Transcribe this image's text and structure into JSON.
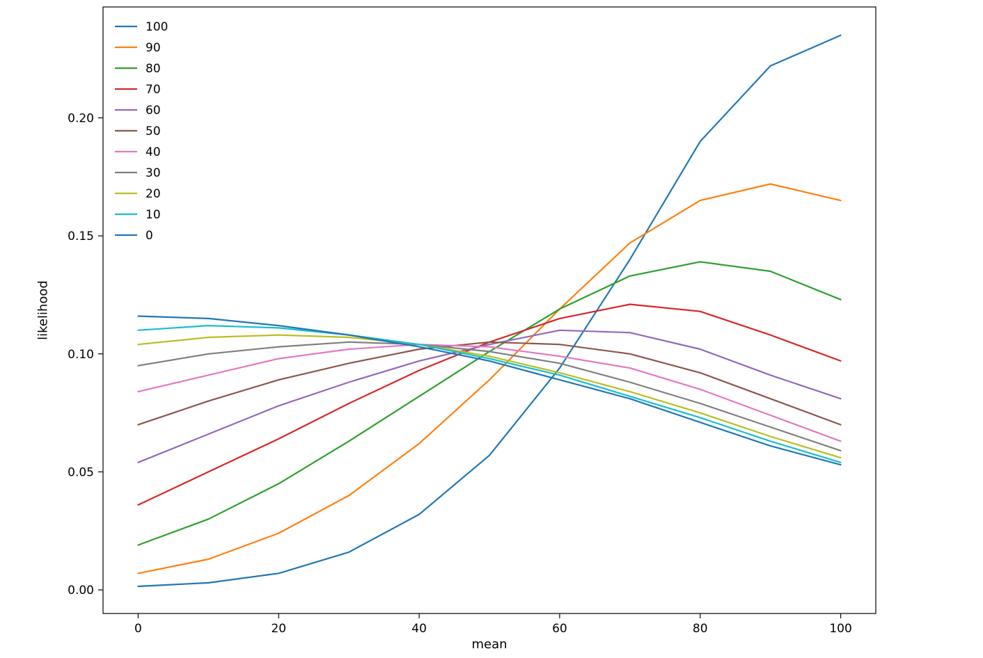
{
  "chart_data": {
    "type": "line",
    "title": "",
    "xlabel": "mean",
    "ylabel": "likelihood",
    "x": [
      0,
      10,
      20,
      30,
      40,
      50,
      60,
      70,
      80,
      90,
      100
    ],
    "series": [
      {
        "name": "100",
        "color": "#1f77b4",
        "values": [
          0.0015,
          0.003,
          0.007,
          0.016,
          0.032,
          0.057,
          0.094,
          0.14,
          0.19,
          0.222,
          0.235
        ]
      },
      {
        "name": "90",
        "color": "#ff7f0e",
        "values": [
          0.007,
          0.013,
          0.024,
          0.04,
          0.062,
          0.089,
          0.119,
          0.147,
          0.165,
          0.172,
          0.165
        ]
      },
      {
        "name": "80",
        "color": "#2ca02c",
        "values": [
          0.019,
          0.03,
          0.045,
          0.063,
          0.082,
          0.101,
          0.119,
          0.133,
          0.139,
          0.135,
          0.123
        ]
      },
      {
        "name": "70",
        "color": "#d62728",
        "values": [
          0.036,
          0.05,
          0.064,
          0.079,
          0.093,
          0.105,
          0.115,
          0.121,
          0.118,
          0.108,
          0.097
        ]
      },
      {
        "name": "60",
        "color": "#9467bd",
        "values": [
          0.054,
          0.066,
          0.078,
          0.088,
          0.097,
          0.104,
          0.11,
          0.109,
          0.102,
          0.091,
          0.081
        ]
      },
      {
        "name": "50",
        "color": "#8c564b",
        "values": [
          0.07,
          0.08,
          0.089,
          0.096,
          0.102,
          0.105,
          0.104,
          0.1,
          0.092,
          0.081,
          0.07
        ]
      },
      {
        "name": "40",
        "color": "#e377c2",
        "values": [
          0.084,
          0.091,
          0.098,
          0.102,
          0.104,
          0.103,
          0.099,
          0.094,
          0.085,
          0.074,
          0.063
        ]
      },
      {
        "name": "30",
        "color": "#7f7f7f",
        "values": [
          0.095,
          0.1,
          0.103,
          0.105,
          0.104,
          0.101,
          0.096,
          0.088,
          0.079,
          0.069,
          0.059
        ]
      },
      {
        "name": "20",
        "color": "#bcbd22",
        "values": [
          0.104,
          0.107,
          0.108,
          0.107,
          0.104,
          0.099,
          0.092,
          0.084,
          0.075,
          0.065,
          0.056
        ]
      },
      {
        "name": "10",
        "color": "#17becf",
        "values": [
          0.11,
          0.112,
          0.111,
          0.108,
          0.104,
          0.098,
          0.091,
          0.082,
          0.073,
          0.063,
          0.054
        ]
      },
      {
        "name": "0",
        "color": "#1f77b4",
        "values": [
          0.116,
          0.115,
          0.112,
          0.108,
          0.103,
          0.097,
          0.089,
          0.081,
          0.071,
          0.061,
          0.053
        ]
      }
    ],
    "xticks": {
      "values": [
        0,
        20,
        40,
        60,
        80,
        100
      ],
      "labels": [
        "0",
        "20",
        "40",
        "60",
        "80",
        "100"
      ]
    },
    "yticks": {
      "values": [
        0.0,
        0.05,
        0.1,
        0.15,
        0.2
      ],
      "labels": [
        "0.00",
        "0.05",
        "0.10",
        "0.15",
        "0.20"
      ]
    },
    "xlim": [
      -5,
      105
    ],
    "ylim": [
      -0.01,
      0.247
    ],
    "grid": false,
    "legend": {
      "position": "upper left",
      "entries": [
        "100",
        "90",
        "80",
        "70",
        "60",
        "50",
        "40",
        "30",
        "20",
        "10",
        "0"
      ]
    }
  },
  "style": {
    "background": "#ffffff",
    "axis_color": "#000000",
    "text_color": "#000000"
  }
}
